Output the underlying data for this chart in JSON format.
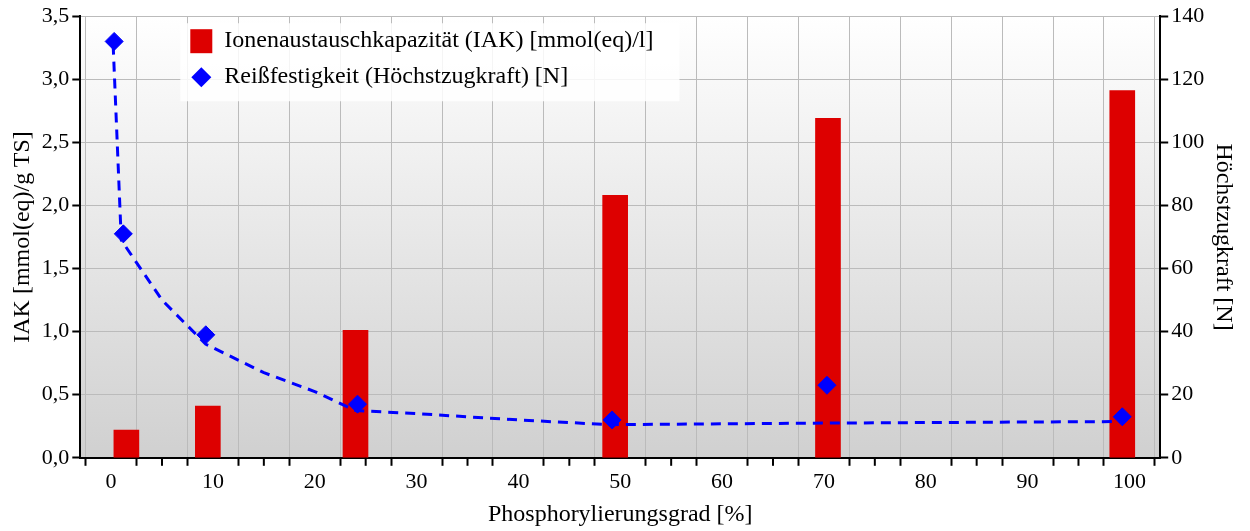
{
  "chart_data": {
    "type": "bar",
    "xlabel": "Phosphorylierungsgrad [%]",
    "ylabel": "IAK [mmol(eq)/g TS]",
    "y2label": "Höchstzugkraft [N]",
    "xlim": [
      -0.5,
      100.5
    ],
    "xticks": [
      0,
      {
        "value": 5,
        "label": null
      },
      10,
      {
        "value": 15,
        "label": null
      },
      20,
      {
        "value": 25,
        "label": null
      },
      30,
      {
        "value": 35,
        "label": null
      },
      40,
      {
        "value": 45,
        "label": null
      },
      50,
      {
        "value": 55,
        "label": null
      },
      60,
      {
        "value": 65,
        "label": null
      },
      70,
      {
        "value": 75,
        "label": null
      },
      80,
      {
        "value": 85,
        "label": null
      },
      90,
      {
        "value": 95,
        "label": null
      },
      100
    ],
    "ylim": [
      0,
      3.5
    ],
    "yticks": [
      {
        "value": 0,
        "label": "0,0"
      },
      {
        "value": 0.5,
        "label": "0,5"
      },
      {
        "value": 1,
        "label": "1,0"
      },
      {
        "value": 1.5,
        "label": "1,5"
      },
      {
        "value": 2,
        "label": "2,0"
      },
      {
        "value": 2.5,
        "label": "2,5"
      },
      {
        "value": 3,
        "label": "3,0"
      },
      {
        "value": 3.5,
        "label": "3,5"
      }
    ],
    "y2lim": [
      0,
      140
    ],
    "y2ticks": [
      0,
      20,
      40,
      60,
      80,
      100,
      120,
      140
    ],
    "grid": true,
    "legend": "top left",
    "series": [
      {
        "name": "Ionenaustauschkapazität (IAK) [mmol(eq)/l]",
        "color": "#dd0000",
        "x": [
          1.5,
          9.5,
          24,
          49.5,
          70.4,
          99.3
        ],
        "values": [
          0.22,
          0.41,
          1.01,
          2.08,
          2.69,
          2.91
        ]
      },
      {
        "type": "scatter",
        "name": "Reißfestigkeit (Höchstzugkraft) [N]",
        "color": "#0000ff",
        "axis": "y2",
        "marker": "diamond",
        "x": [
          0.3,
          1.2,
          9.3,
          24.2,
          49.2,
          70.3,
          99.3
        ],
        "values": [
          132,
          71,
          39,
          17,
          12,
          23,
          13
        ]
      },
      {
        "type": "line",
        "color": "#0000ff",
        "axis": "y2",
        "line_style": "dashed",
        "marker": "none",
        "x": [
          0.2,
          1,
          5,
          9.3,
          15,
          20,
          24,
          30,
          40,
          49,
          70,
          99.3
        ],
        "values": [
          131,
          69,
          50,
          36,
          27,
          21,
          15,
          14,
          12,
          10.5,
          11,
          11.5
        ]
      }
    ]
  }
}
